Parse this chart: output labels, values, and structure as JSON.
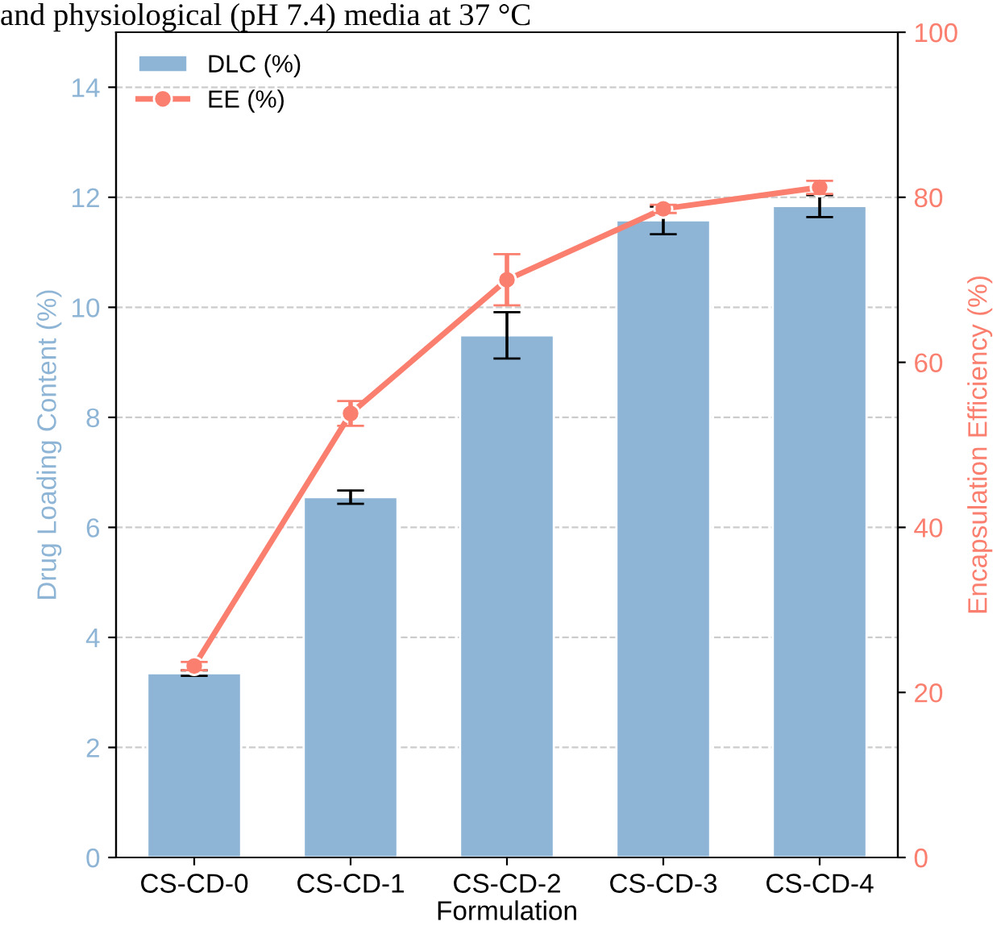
{
  "chart_data": {
    "type": "bar",
    "categories": [
      "CS-CD-0",
      "CS-CD-1",
      "CS-CD-2",
      "CS-CD-3",
      "CS-CD-4"
    ],
    "xlabel": "Formulation",
    "ylabel": "Drug Loading Content (%)",
    "y2label": "Encapsulation Efficiency (%)",
    "annotations": [
      "and physiological (pH 7.4) media at 37 °C"
    ],
    "series": [
      {
        "name": "DLC (%)",
        "color": "#8fb5d6",
        "values": [
          3.35,
          6.55,
          9.49,
          11.58,
          11.84
        ],
        "errors": [
          0.05,
          0.12,
          0.42,
          0.25,
          0.2
        ]
      },
      {
        "name": "EE (%)",
        "type": "line",
        "axis": "y2",
        "color": "#fa7f6f",
        "values": [
          23.2,
          53.8,
          70.0,
          78.6,
          81.2
        ],
        "errors": [
          0.5,
          1.5,
          3.1,
          0.5,
          0.8
        ],
        "marker": "circle",
        "line_style": "solid"
      }
    ],
    "ylim": [
      0,
      15
    ],
    "yticks": [
      0,
      2,
      4,
      6,
      8,
      10,
      12,
      14
    ],
    "y2lim": [
      0,
      100
    ],
    "y2ticks": [
      0,
      20,
      40,
      60,
      80,
      100
    ],
    "grid": "y",
    "legend": "top left"
  }
}
